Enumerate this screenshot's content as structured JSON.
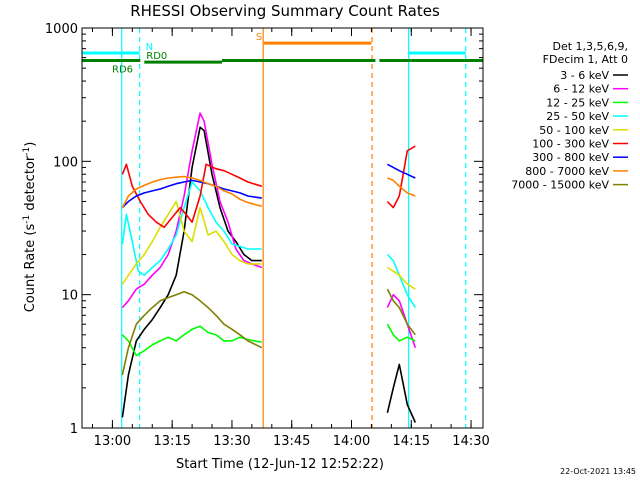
{
  "chart_data": {
    "type": "line",
    "title": "RHESSI Observing Summary Count Rates",
    "xlabel": "Start Time (12-Jun-12 12:52:22)",
    "ylabel_main": "Count Rate (s",
    "ylabel_sup1": "-1",
    "ylabel_mid": " detector",
    "ylabel_sup2": "-1",
    "ylabel_end": ")",
    "footer_date": "22-Oct-2021 13:45",
    "y_scale": "log",
    "ylim": [
      1,
      1000
    ],
    "xlim": [
      "12:52:22",
      "14:33:00"
    ],
    "x_ticks": [
      {
        "t": "13:00",
        "label": "13:00"
      },
      {
        "t": "13:15",
        "label": "13:15"
      },
      {
        "t": "13:30",
        "label": "13:30"
      },
      {
        "t": "13:45",
        "label": "13:45"
      },
      {
        "t": "14:00",
        "label": "14:00"
      },
      {
        "t": "14:15",
        "label": "14:15"
      },
      {
        "t": "14:30",
        "label": "14:30"
      }
    ],
    "y_ticks": [
      {
        "v": 1,
        "label": "1"
      },
      {
        "v": 10,
        "label": "10"
      },
      {
        "v": 100,
        "label": "100"
      },
      {
        "v": 1000,
        "label": "1000"
      }
    ],
    "legend": {
      "header": [
        "Det 1,3,5,6,9,",
        "FDecim 1, Att 0"
      ],
      "placement": "right"
    },
    "data_segments": [
      [
        "13:02:00",
        "13:38:00"
      ],
      [
        "14:09:00",
        "14:17:00"
      ]
    ],
    "series": [
      {
        "name": "3 - 6 keV",
        "color": "#000000",
        "points": [
          [
            "13:02:30",
            1.2
          ],
          [
            "13:04:00",
            2.5
          ],
          [
            "13:06:00",
            4.5
          ],
          [
            "13:08:00",
            5.5
          ],
          [
            "13:10:00",
            6.5
          ],
          [
            "13:12:00",
            8
          ],
          [
            "13:14:00",
            10
          ],
          [
            "13:16:00",
            14
          ],
          [
            "13:18:00",
            30
          ],
          [
            "13:20:00",
            90
          ],
          [
            "13:22:00",
            180
          ],
          [
            "13:23:00",
            170
          ],
          [
            "13:25:00",
            80
          ],
          [
            "13:27:00",
            45
          ],
          [
            "13:29:00",
            30
          ],
          [
            "13:31:00",
            25
          ],
          [
            "13:33:00",
            20
          ],
          [
            "13:35:00",
            18
          ],
          [
            "13:37:30",
            18
          ],
          null,
          [
            "14:09:00",
            1.3
          ],
          [
            "14:10:30",
            2
          ],
          [
            "14:12:00",
            3
          ],
          [
            "14:14:00",
            1.5
          ],
          [
            "14:16:00",
            1.1
          ]
        ]
      },
      {
        "name": "6 - 12 keV",
        "color": "#ff00ff",
        "points": [
          [
            "13:02:30",
            8
          ],
          [
            "13:04:00",
            9
          ],
          [
            "13:06:00",
            11
          ],
          [
            "13:08:00",
            12
          ],
          [
            "13:10:00",
            14
          ],
          [
            "13:12:00",
            16
          ],
          [
            "13:14:00",
            20
          ],
          [
            "13:16:00",
            30
          ],
          [
            "13:18:00",
            55
          ],
          [
            "13:20:00",
            120
          ],
          [
            "13:22:00",
            230
          ],
          [
            "13:23:00",
            200
          ],
          [
            "13:25:00",
            95
          ],
          [
            "13:27:00",
            50
          ],
          [
            "13:29:00",
            35
          ],
          [
            "13:31:00",
            22
          ],
          [
            "13:33:00",
            18
          ],
          [
            "13:35:00",
            17
          ],
          [
            "13:37:30",
            16
          ],
          null,
          [
            "14:09:00",
            8
          ],
          [
            "14:10:30",
            10
          ],
          [
            "14:12:00",
            9
          ],
          [
            "14:14:00",
            6
          ],
          [
            "14:16:00",
            4
          ]
        ]
      },
      {
        "name": "12 - 25 keV",
        "color": "#00ff00",
        "points": [
          [
            "13:02:30",
            5
          ],
          [
            "13:04:00",
            4.5
          ],
          [
            "13:06:00",
            3.5
          ],
          [
            "13:08:00",
            3.8
          ],
          [
            "13:10:00",
            4.2
          ],
          [
            "13:12:00",
            4.5
          ],
          [
            "13:14:00",
            4.8
          ],
          [
            "13:16:00",
            4.5
          ],
          [
            "13:18:00",
            5
          ],
          [
            "13:20:00",
            5.5
          ],
          [
            "13:22:00",
            5.8
          ],
          [
            "13:24:00",
            5.2
          ],
          [
            "13:26:00",
            5
          ],
          [
            "13:28:00",
            4.5
          ],
          [
            "13:30:00",
            4.5
          ],
          [
            "13:32:00",
            4.8
          ],
          [
            "13:34:00",
            4.6
          ],
          [
            "13:37:30",
            4.4
          ],
          null,
          [
            "14:09:00",
            6
          ],
          [
            "14:10:30",
            5
          ],
          [
            "14:12:00",
            4.5
          ],
          [
            "14:14:00",
            4.8
          ],
          [
            "14:16:00",
            4.5
          ]
        ]
      },
      {
        "name": "25 - 50 keV",
        "color": "#00ffff",
        "points": [
          [
            "13:02:30",
            24
          ],
          [
            "13:03:30",
            40
          ],
          [
            "13:05:00",
            25
          ],
          [
            "13:06:30",
            15
          ],
          [
            "13:08:00",
            14
          ],
          [
            "13:10:00",
            16
          ],
          [
            "13:12:00",
            18
          ],
          [
            "13:14:00",
            22
          ],
          [
            "13:16:00",
            28
          ],
          [
            "13:18:00",
            45
          ],
          [
            "13:20:00",
            70
          ],
          [
            "13:22:00",
            60
          ],
          [
            "13:24:00",
            45
          ],
          [
            "13:26:00",
            35
          ],
          [
            "13:28:00",
            30
          ],
          [
            "13:30:00",
            24
          ],
          [
            "13:32:00",
            23
          ],
          [
            "13:34:00",
            22
          ],
          [
            "13:37:30",
            22
          ],
          null,
          [
            "14:09:00",
            20
          ],
          [
            "14:10:30",
            18
          ],
          [
            "14:12:00",
            14
          ],
          [
            "14:14:00",
            10
          ],
          [
            "14:16:00",
            8
          ]
        ]
      },
      {
        "name": "50 - 100 keV",
        "color": "#dddd00",
        "points": [
          [
            "13:02:30",
            12
          ],
          [
            "13:04:00",
            14
          ],
          [
            "13:06:00",
            17
          ],
          [
            "13:08:00",
            20
          ],
          [
            "13:10:00",
            25
          ],
          [
            "13:12:00",
            32
          ],
          [
            "13:14:00",
            40
          ],
          [
            "13:16:00",
            50
          ],
          [
            "13:18:00",
            30
          ],
          [
            "13:20:00",
            25
          ],
          [
            "13:22:00",
            45
          ],
          [
            "13:24:00",
            28
          ],
          [
            "13:26:00",
            30
          ],
          [
            "13:28:00",
            25
          ],
          [
            "13:30:00",
            20
          ],
          [
            "13:32:00",
            18
          ],
          [
            "13:34:00",
            17
          ],
          [
            "13:37:30",
            17
          ],
          null,
          [
            "14:09:00",
            16
          ],
          [
            "14:10:30",
            15
          ],
          [
            "14:12:00",
            14
          ],
          [
            "14:14:00",
            12
          ],
          [
            "14:16:00",
            11
          ]
        ]
      },
      {
        "name": "100 - 300 keV",
        "color": "#ff0000",
        "points": [
          [
            "13:02:30",
            80
          ],
          [
            "13:03:30",
            95
          ],
          [
            "13:05:00",
            65
          ],
          [
            "13:07:00",
            50
          ],
          [
            "13:09:00",
            40
          ],
          [
            "13:11:00",
            35
          ],
          [
            "13:13:00",
            32
          ],
          [
            "13:15:00",
            38
          ],
          [
            "13:17:00",
            45
          ],
          [
            "13:18:30",
            40
          ],
          [
            "13:20:00",
            35
          ],
          [
            "13:22:00",
            55
          ],
          [
            "13:23:30",
            95
          ],
          [
            "13:26:00",
            88
          ],
          [
            "13:28:00",
            85
          ],
          [
            "13:30:00",
            80
          ],
          [
            "13:32:00",
            75
          ],
          [
            "13:34:00",
            70
          ],
          [
            "13:37:30",
            65
          ],
          null,
          [
            "14:09:00",
            50
          ],
          [
            "14:10:30",
            45
          ],
          [
            "14:12:00",
            55
          ],
          [
            "14:14:00",
            120
          ],
          [
            "14:16:00",
            130
          ]
        ]
      },
      {
        "name": "300 - 800 keV",
        "color": "#0000ff",
        "points": [
          [
            "13:02:30",
            45
          ],
          [
            "13:04:00",
            50
          ],
          [
            "13:06:00",
            55
          ],
          [
            "13:08:00",
            58
          ],
          [
            "13:10:00",
            60
          ],
          [
            "13:12:00",
            62
          ],
          [
            "13:14:00",
            65
          ],
          [
            "13:16:00",
            68
          ],
          [
            "13:18:00",
            70
          ],
          [
            "13:20:00",
            72
          ],
          [
            "13:22:00",
            70
          ],
          [
            "13:24:00",
            68
          ],
          [
            "13:26:00",
            65
          ],
          [
            "13:28:00",
            62
          ],
          [
            "13:30:00",
            60
          ],
          [
            "13:32:00",
            58
          ],
          [
            "13:34:00",
            55
          ],
          [
            "13:37:30",
            53
          ],
          null,
          [
            "14:09:00",
            95
          ],
          [
            "14:10:30",
            90
          ],
          [
            "14:12:00",
            85
          ],
          [
            "14:14:00",
            80
          ],
          [
            "14:16:00",
            75
          ]
        ]
      },
      {
        "name": "800 - 7000 keV",
        "color": "#ff8000",
        "points": [
          [
            "13:02:30",
            45
          ],
          [
            "13:04:00",
            55
          ],
          [
            "13:06:00",
            62
          ],
          [
            "13:08:00",
            66
          ],
          [
            "13:10:00",
            70
          ],
          [
            "13:12:00",
            73
          ],
          [
            "13:14:00",
            75
          ],
          [
            "13:16:00",
            76
          ],
          [
            "13:18:00",
            77
          ],
          [
            "13:20:00",
            75
          ],
          [
            "13:22:00",
            72
          ],
          [
            "13:24:00",
            68
          ],
          [
            "13:26:00",
            65
          ],
          [
            "13:28:00",
            60
          ],
          [
            "13:30:00",
            57
          ],
          [
            "13:32:00",
            52
          ],
          [
            "13:34:00",
            49
          ],
          [
            "13:37:30",
            46
          ],
          null,
          [
            "14:09:00",
            75
          ],
          [
            "14:10:30",
            72
          ],
          [
            "14:12:00",
            65
          ],
          [
            "14:14:00",
            58
          ],
          [
            "14:16:00",
            55
          ]
        ]
      },
      {
        "name": "7000 - 15000 keV",
        "color": "#808000",
        "points": [
          [
            "13:02:30",
            2.5
          ],
          [
            "13:04:00",
            4
          ],
          [
            "13:06:00",
            6
          ],
          [
            "13:08:00",
            7
          ],
          [
            "13:10:00",
            8
          ],
          [
            "13:12:00",
            9
          ],
          [
            "13:14:00",
            9.5
          ],
          [
            "13:16:00",
            10
          ],
          [
            "13:18:00",
            10.5
          ],
          [
            "13:20:00",
            10
          ],
          [
            "13:22:00",
            9
          ],
          [
            "13:24:00",
            8
          ],
          [
            "13:26:00",
            7
          ],
          [
            "13:28:00",
            6
          ],
          [
            "13:30:00",
            5.5
          ],
          [
            "13:32:00",
            5
          ],
          [
            "13:34:00",
            4.5
          ],
          [
            "13:37:30",
            4
          ],
          null,
          [
            "14:09:00",
            11
          ],
          [
            "14:10:30",
            9
          ],
          [
            "14:12:00",
            8
          ],
          [
            "14:14:00",
            6
          ],
          [
            "14:16:00",
            5
          ]
        ]
      }
    ],
    "annotations": {
      "vlines": [
        {
          "t": "13:02:20",
          "color": "#00ffff",
          "style": "solid"
        },
        {
          "t": "13:06:50",
          "color": "#00ffff",
          "style": "dashed"
        },
        {
          "t": "13:37:50",
          "color": "#ff8000",
          "style": "solid"
        },
        {
          "t": "14:05:10",
          "color": "#ff8000",
          "style": "dashed"
        },
        {
          "t": "14:14:20",
          "color": "#00ffff",
          "style": "solid"
        },
        {
          "t": "14:28:40",
          "color": "#00ffff",
          "style": "dashed"
        }
      ],
      "bars": [
        {
          "label": "N",
          "color": "#00ffff",
          "segments": [
            [
              "12:52:22",
              "13:06:50"
            ],
            [
              "14:14:20",
              "14:28:40"
            ]
          ],
          "level": 650
        },
        {
          "label": "RD0",
          "color": "#008000",
          "segments": [
            [
              "13:08:00",
              "13:27:30"
            ]
          ],
          "level": 555
        },
        {
          "label": "RD6",
          "color": "#008000",
          "segments": [
            [
              "12:52:22",
              "13:07:00"
            ],
            [
              "13:27:30",
              "14:06:00"
            ],
            [
              "14:07:00",
              "14:15:00"
            ],
            [
              "14:15:00",
              "14:33:00"
            ]
          ],
          "level": 570
        },
        {
          "label": "S",
          "color": "#ff8000",
          "segments": [
            [
              "13:38:00",
              "14:05:00"
            ]
          ],
          "level": 770
        }
      ]
    }
  }
}
